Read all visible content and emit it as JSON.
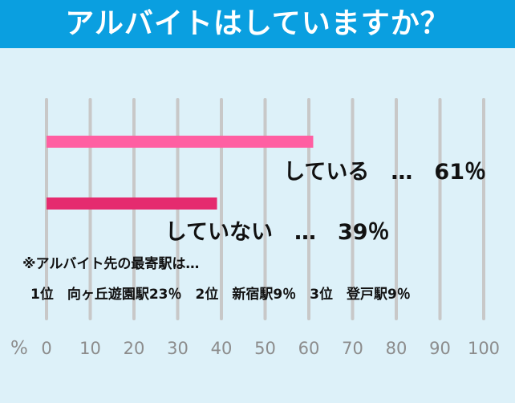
{
  "header": {
    "title": "アルバイトはしていますか？"
  },
  "colors": {
    "background": "#ddf1f9",
    "header": "#0a9fe0",
    "gridline": "#c8c8c8",
    "tick_text": "#8c8c8c"
  },
  "chart_data": {
    "type": "bar",
    "orientation": "horizontal",
    "x_unit": "%",
    "xlim": [
      0,
      100
    ],
    "x_ticks": [
      0,
      10,
      20,
      30,
      40,
      50,
      60,
      70,
      80,
      90,
      100
    ],
    "grid": true,
    "bars": [
      {
        "category": "している",
        "value": 61,
        "label": "している　…　61％",
        "color": "#ff5fa2"
      },
      {
        "category": "していない",
        "value": 39,
        "label": "していない　…　39％",
        "color": "#e52b6f"
      }
    ]
  },
  "notes": {
    "heading": "※アルバイト先の最寄駅は…",
    "ranking": "1位　向ヶ丘遊園駅23％　2位　新宿駅9％　3位　登戸駅9％"
  }
}
